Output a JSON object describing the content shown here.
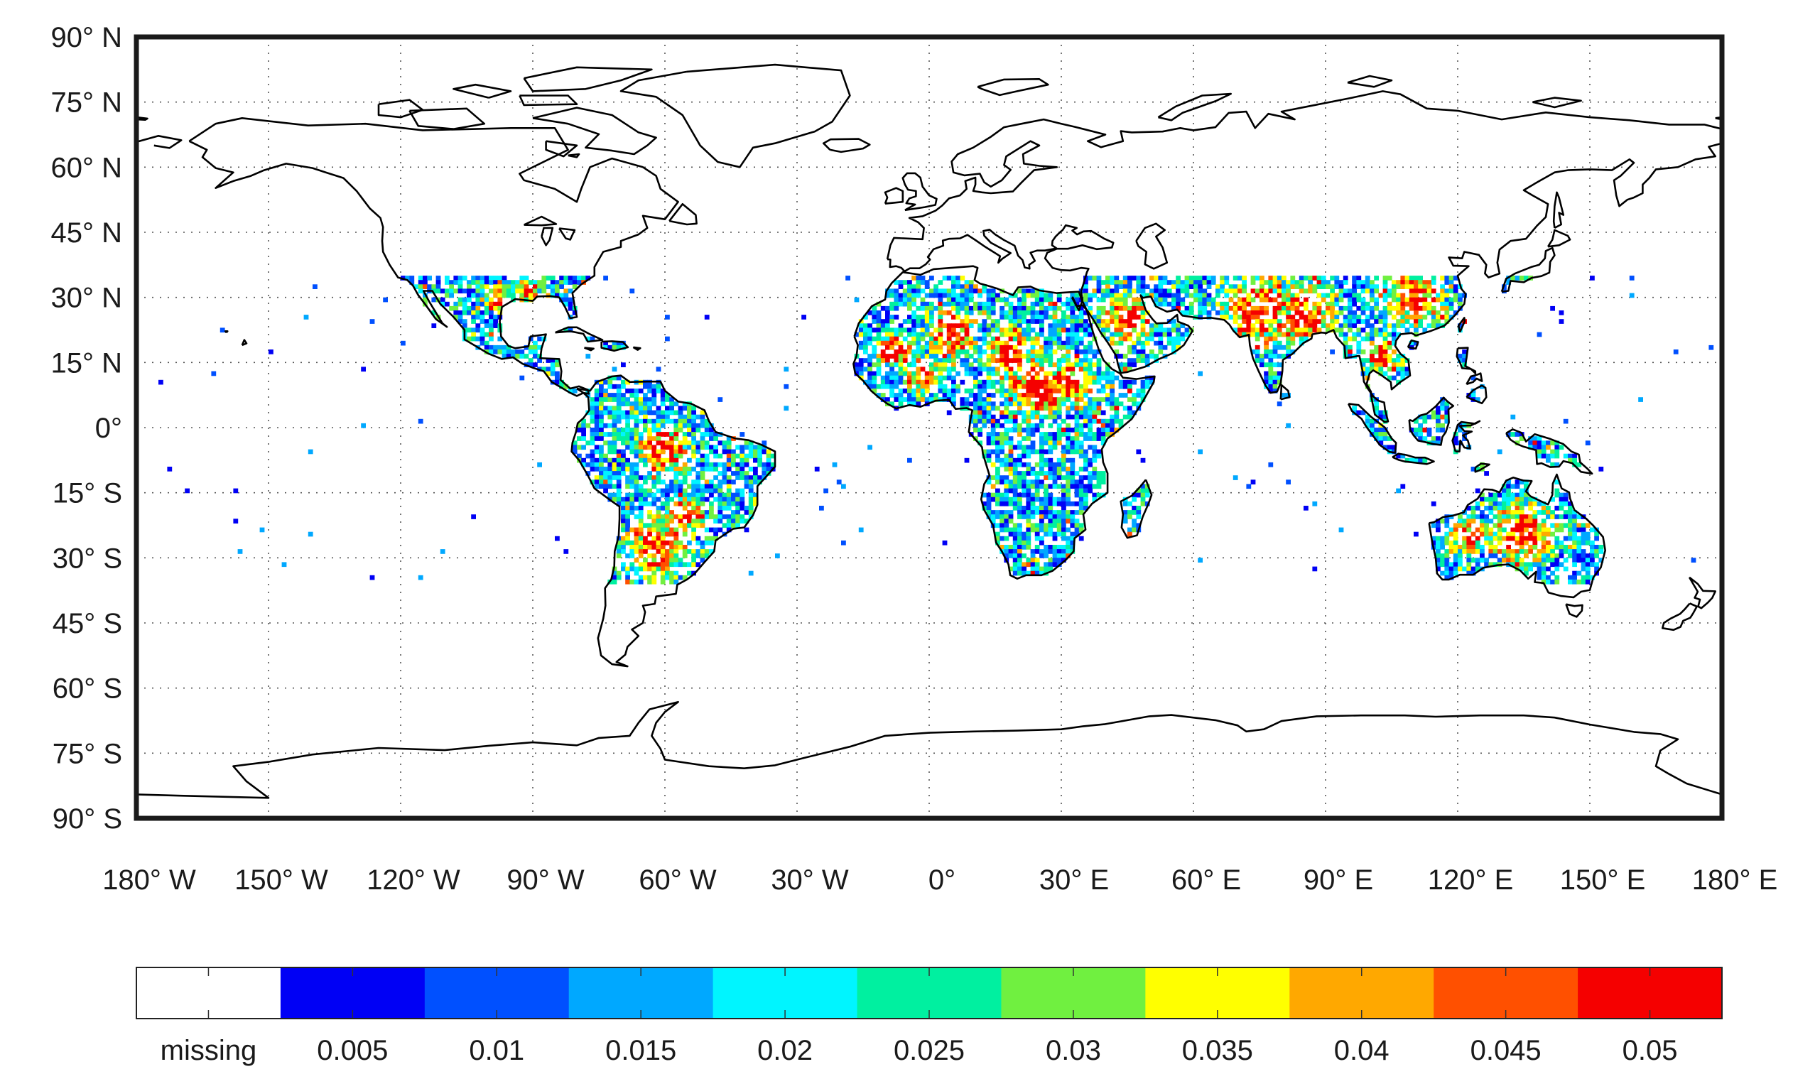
{
  "map": {
    "lat_labels": [
      {
        "value": 90,
        "text": "90° N"
      },
      {
        "value": 75,
        "text": "75° N"
      },
      {
        "value": 60,
        "text": "60° N"
      },
      {
        "value": 45,
        "text": "45° N"
      },
      {
        "value": 30,
        "text": "30° N"
      },
      {
        "value": 15,
        "text": "15° N"
      },
      {
        "value": 0,
        "text": "0°"
      },
      {
        "value": -15,
        "text": "15° S"
      },
      {
        "value": -30,
        "text": "30° S"
      },
      {
        "value": -45,
        "text": "45° S"
      },
      {
        "value": -60,
        "text": "60° S"
      },
      {
        "value": -75,
        "text": "75° S"
      },
      {
        "value": -90,
        "text": "90° S"
      }
    ],
    "lon_labels": [
      {
        "value": -180,
        "text": "180° W"
      },
      {
        "value": -150,
        "text": "150° W"
      },
      {
        "value": -120,
        "text": "120° W"
      },
      {
        "value": -90,
        "text": "90° W"
      },
      {
        "value": -60,
        "text": "60° W"
      },
      {
        "value": -30,
        "text": "30° W"
      },
      {
        "value": 0,
        "text": "0°"
      },
      {
        "value": 30,
        "text": "30° E"
      },
      {
        "value": 60,
        "text": "60° E"
      },
      {
        "value": 90,
        "text": "90° E"
      },
      {
        "value": 120,
        "text": "120° E"
      },
      {
        "value": 150,
        "text": "150° E"
      },
      {
        "value": 180,
        "text": "180° E"
      }
    ],
    "lat_range": [
      -90,
      90
    ],
    "lon_range": [
      -180,
      180
    ],
    "grid": "dotted",
    "data_lat_range": [
      -35,
      35
    ]
  },
  "colorbar": {
    "position": "bottom",
    "entries": [
      {
        "label": "missing",
        "color": "#ffffff"
      },
      {
        "label": "0.005",
        "color": "#0000f5"
      },
      {
        "label": "0.01",
        "color": "#0050ff"
      },
      {
        "label": "0.015",
        "color": "#00a8ff"
      },
      {
        "label": "0.02",
        "color": "#00f5ff"
      },
      {
        "label": "0.025",
        "color": "#00f0a0"
      },
      {
        "label": "0.03",
        "color": "#70f040"
      },
      {
        "label": "0.035",
        "color": "#ffff00"
      },
      {
        "label": "0.04",
        "color": "#ffa800"
      },
      {
        "label": "0.045",
        "color": "#ff5000"
      },
      {
        "label": "0.05",
        "color": "#f50000"
      }
    ]
  }
}
